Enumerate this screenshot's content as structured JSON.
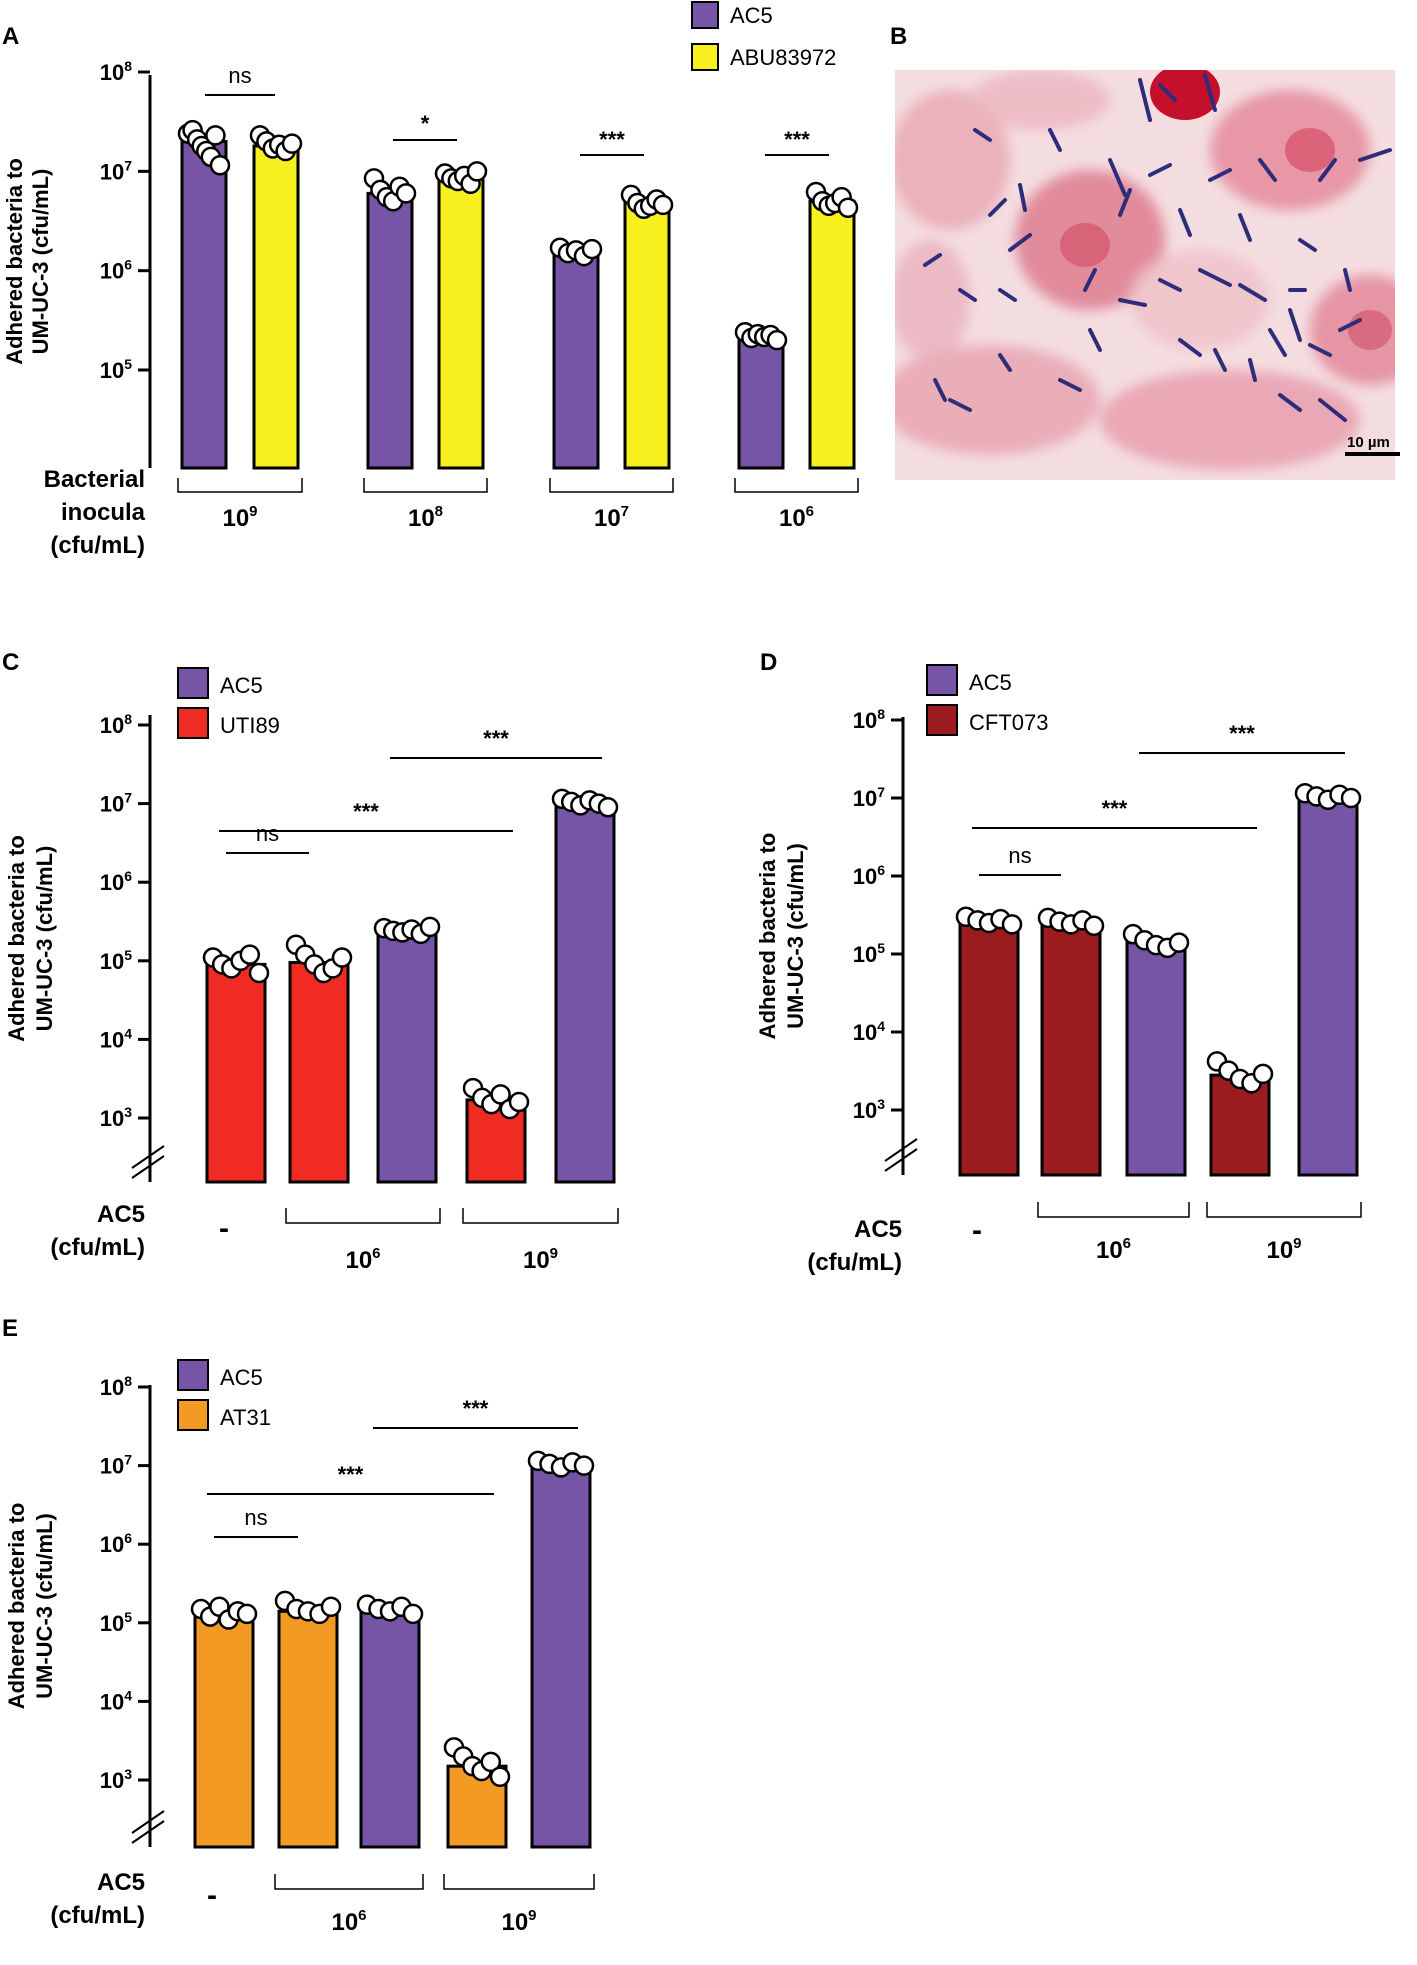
{
  "panel_letters": [
    "A",
    "B",
    "C",
    "D",
    "E"
  ],
  "micrograph": {
    "scale_bar_label": "10 µm"
  },
  "colors": {
    "AC5": "#7654a6",
    "ABU83972": "#f7ef1e",
    "UTI89": "#ef2b24",
    "CFT073": "#9a1c1f",
    "AT31": "#f39a25",
    "outline": "#000000",
    "dot_fill": "#ffffff"
  },
  "chart_data": [
    {
      "panel": "A",
      "type": "bar",
      "scale": "log10",
      "ylabel": [
        "Adhered bacteria to",
        "UM-UC-3 (cfu/mL)"
      ],
      "ylim": [
        10000,
        100000000
      ],
      "ticks": [
        {
          "base": "10",
          "exp": "8",
          "value": 100000000
        },
        {
          "base": "10",
          "exp": "7",
          "value": 10000000
        },
        {
          "base": "10",
          "exp": "6",
          "value": 1000000
        },
        {
          "base": "10",
          "exp": "5",
          "value": 100000
        }
      ],
      "axis_break": false,
      "legend": [
        {
          "name": "AC5",
          "colorKey": "AC5"
        },
        {
          "name": "ABU83972",
          "colorKey": "ABU83972"
        }
      ],
      "xlabel": [
        "Bacterial",
        "inocula",
        "(cfu/mL)"
      ],
      "groups": [
        {
          "base": "10",
          "exp": "9",
          "bars": [
            0,
            1
          ]
        },
        {
          "base": "10",
          "exp": "8",
          "bars": [
            2,
            3
          ]
        },
        {
          "base": "10",
          "exp": "7",
          "bars": [
            4,
            5
          ]
        },
        {
          "base": "10",
          "exp": "6",
          "bars": [
            6,
            7
          ]
        }
      ],
      "bars": [
        {
          "series": "AC5",
          "value": 20000000,
          "points": [
            24000000,
            26000000,
            21000000,
            18000000,
            16000000,
            14000000,
            23000000,
            11500000
          ]
        },
        {
          "series": "ABU83972",
          "value": 18000000,
          "points": [
            23000000,
            20000000,
            17000000,
            18500000,
            16000000,
            19000000
          ]
        },
        {
          "series": "AC5",
          "value": 6000000,
          "points": [
            8500000,
            6500000,
            5500000,
            5000000,
            7000000,
            6000000
          ]
        },
        {
          "series": "ABU83972",
          "value": 8500000,
          "points": [
            9500000,
            8500000,
            8000000,
            9000000,
            7500000,
            10000000
          ]
        },
        {
          "series": "AC5",
          "value": 1600000,
          "points": [
            1700000,
            1500000,
            1600000,
            1400000,
            1650000
          ]
        },
        {
          "series": "ABU83972",
          "value": 4800000,
          "points": [
            5800000,
            4800000,
            4200000,
            4500000,
            5200000,
            4600000
          ]
        },
        {
          "series": "AC5",
          "value": 220000,
          "points": [
            240000,
            210000,
            230000,
            215000,
            225000,
            200000
          ]
        },
        {
          "series": "ABU83972",
          "value": 5000000,
          "points": [
            6200000,
            5000000,
            4500000,
            4800000,
            5500000,
            4300000
          ]
        }
      ],
      "significance": [
        {
          "label": "ns",
          "from": 0,
          "to": 1
        },
        {
          "label": "*",
          "from": 2,
          "to": 3
        },
        {
          "label": "***",
          "from": 4,
          "to": 5
        },
        {
          "label": "***",
          "from": 6,
          "to": 7
        }
      ]
    },
    {
      "panel": "C",
      "type": "bar",
      "scale": "log10",
      "ylabel": [
        "Adhered bacteria to",
        "UM-UC-3 (cfu/mL)"
      ],
      "ylim": [
        300,
        100000000
      ],
      "ticks": [
        {
          "base": "10",
          "exp": "8",
          "value": 100000000
        },
        {
          "base": "10",
          "exp": "7",
          "value": 10000000
        },
        {
          "base": "10",
          "exp": "6",
          "value": 1000000
        },
        {
          "base": "10",
          "exp": "5",
          "value": 100000
        },
        {
          "base": "10",
          "exp": "4",
          "value": 10000
        },
        {
          "base": "10",
          "exp": "3",
          "value": 1000
        }
      ],
      "axis_break": true,
      "legend": [
        {
          "name": "AC5",
          "colorKey": "AC5"
        },
        {
          "name": "UTI89",
          "colorKey": "UTI89"
        }
      ],
      "xlabel": [
        "AC5",
        "(cfu/mL)"
      ],
      "groups": [
        {
          "dash": "-",
          "bars": [
            0
          ]
        },
        {
          "base": "10",
          "exp": "6",
          "bars": [
            1,
            2
          ]
        },
        {
          "base": "10",
          "exp": "9",
          "bars": [
            3,
            4
          ]
        }
      ],
      "bars": [
        {
          "series": "UTI89",
          "value": 90000,
          "points": [
            110000,
            90000,
            80000,
            100000,
            120000,
            70000
          ]
        },
        {
          "series": "UTI89",
          "value": 95000,
          "points": [
            160000,
            120000,
            90000,
            70000,
            80000,
            110000
          ]
        },
        {
          "series": "AC5",
          "value": 240000,
          "points": [
            260000,
            240000,
            230000,
            250000,
            220000,
            270000
          ]
        },
        {
          "series": "UTI89",
          "value": 1700,
          "points": [
            2400,
            1800,
            1500,
            2000,
            1300,
            1600
          ]
        },
        {
          "series": "AC5",
          "value": 10000000,
          "points": [
            11500000,
            10500000,
            9500000,
            11000000,
            10000000,
            9000000
          ]
        }
      ],
      "significance": [
        {
          "label": "ns",
          "from": 0,
          "to": 1,
          "level": 0
        },
        {
          "label": "***",
          "from": 0,
          "to": 3,
          "level": 1
        },
        {
          "label": "***",
          "from": 2,
          "to": 4,
          "level": 2
        }
      ]
    },
    {
      "panel": "D",
      "type": "bar",
      "scale": "log10",
      "ylabel": [
        "Adhered bacteria to",
        "UM-UC-3 (cfu/mL)"
      ],
      "ylim": [
        300,
        100000000
      ],
      "ticks": [
        {
          "base": "10",
          "exp": "8",
          "value": 100000000
        },
        {
          "base": "10",
          "exp": "7",
          "value": 10000000
        },
        {
          "base": "10",
          "exp": "6",
          "value": 1000000
        },
        {
          "base": "10",
          "exp": "5",
          "value": 100000
        },
        {
          "base": "10",
          "exp": "4",
          "value": 10000
        },
        {
          "base": "10",
          "exp": "3",
          "value": 1000
        }
      ],
      "axis_break": true,
      "legend": [
        {
          "name": "AC5",
          "colorKey": "AC5"
        },
        {
          "name": "CFT073",
          "colorKey": "CFT073"
        }
      ],
      "xlabel": [
        "AC5",
        "(cfu/mL)"
      ],
      "groups": [
        {
          "dash": "-",
          "bars": [
            0
          ]
        },
        {
          "base": "10",
          "exp": "6",
          "bars": [
            1,
            2
          ]
        },
        {
          "base": "10",
          "exp": "9",
          "bars": [
            3,
            4
          ]
        }
      ],
      "bars": [
        {
          "series": "CFT073",
          "value": 260000,
          "points": [
            300000,
            270000,
            250000,
            280000,
            240000
          ]
        },
        {
          "series": "CFT073",
          "value": 250000,
          "points": [
            290000,
            260000,
            240000,
            270000,
            230000
          ]
        },
        {
          "series": "AC5",
          "value": 140000,
          "points": [
            180000,
            150000,
            130000,
            120000,
            140000
          ]
        },
        {
          "series": "CFT073",
          "value": 2800,
          "points": [
            4200,
            3200,
            2500,
            2200,
            2900
          ]
        },
        {
          "series": "AC5",
          "value": 10000000,
          "points": [
            11500000,
            10500000,
            9500000,
            11000000,
            10000000
          ]
        }
      ],
      "significance": [
        {
          "label": "ns",
          "from": 0,
          "to": 1,
          "level": 0
        },
        {
          "label": "***",
          "from": 0,
          "to": 3,
          "level": 1
        },
        {
          "label": "***",
          "from": 2,
          "to": 4,
          "level": 2
        }
      ]
    },
    {
      "panel": "E",
      "type": "bar",
      "scale": "log10",
      "ylabel": [
        "Adhered bacteria to",
        "UM-UC-3 (cfu/mL)"
      ],
      "ylim": [
        300,
        100000000
      ],
      "ticks": [
        {
          "base": "10",
          "exp": "8",
          "value": 100000000
        },
        {
          "base": "10",
          "exp": "7",
          "value": 10000000
        },
        {
          "base": "10",
          "exp": "6",
          "value": 1000000
        },
        {
          "base": "10",
          "exp": "5",
          "value": 100000
        },
        {
          "base": "10",
          "exp": "4",
          "value": 10000
        },
        {
          "base": "10",
          "exp": "3",
          "value": 1000
        }
      ],
      "axis_break": true,
      "legend": [
        {
          "name": "AC5",
          "colorKey": "AC5"
        },
        {
          "name": "AT31",
          "colorKey": "AT31"
        }
      ],
      "xlabel": [
        "AC5",
        "(cfu/mL)"
      ],
      "groups": [
        {
          "dash": "-",
          "bars": [
            0
          ]
        },
        {
          "base": "10",
          "exp": "6",
          "bars": [
            1,
            2
          ]
        },
        {
          "base": "10",
          "exp": "9",
          "bars": [
            3,
            4
          ]
        }
      ],
      "bars": [
        {
          "series": "AT31",
          "value": 130000,
          "points": [
            150000,
            120000,
            160000,
            110000,
            140000,
            130000
          ]
        },
        {
          "series": "AT31",
          "value": 140000,
          "points": [
            190000,
            150000,
            140000,
            130000,
            160000
          ]
        },
        {
          "series": "AC5",
          "value": 150000,
          "points": [
            170000,
            150000,
            140000,
            160000,
            130000
          ]
        },
        {
          "series": "AT31",
          "value": 1500,
          "points": [
            2600,
            2000,
            1500,
            1300,
            1700,
            1100
          ]
        },
        {
          "series": "AC5",
          "value": 10000000,
          "points": [
            11500000,
            10500000,
            9500000,
            11000000,
            10000000
          ]
        }
      ],
      "significance": [
        {
          "label": "ns",
          "from": 0,
          "to": 1,
          "level": 0
        },
        {
          "label": "***",
          "from": 0,
          "to": 3,
          "level": 1
        },
        {
          "label": "***",
          "from": 2,
          "to": 4,
          "level": 2
        }
      ]
    }
  ]
}
